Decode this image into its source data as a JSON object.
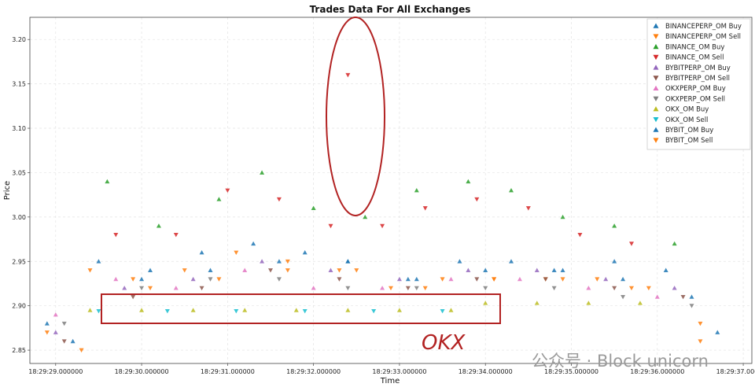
{
  "chart_data": {
    "type": "scatter",
    "title": "Trades Data For All Exchanges",
    "xlabel": "Time",
    "ylabel": "Price",
    "x_ticks": [
      "18:29:29.000000",
      "18:29:30.000000",
      "18:29:31.000000",
      "18:29:32.000000",
      "18:29:33.000000",
      "18:29:34.000000",
      "18:29:35.000000",
      "18:29:36.000000",
      "18:29:37.000000"
    ],
    "y_ticks": [
      "2.85",
      "2.90",
      "2.95",
      "3.00",
      "3.05",
      "3.10",
      "3.15",
      "3.20"
    ],
    "xlim": [
      "18:29:28.700",
      "18:29:37.100"
    ],
    "ylim": [
      2.835,
      3.225
    ],
    "grid": true,
    "legend_position": "top-right",
    "series": [
      {
        "name": "BINANCEPERP_OM Buy",
        "color": "#1f77b4",
        "marker": "triangle-up",
        "x": [
          "18:29:28.90",
          "18:29:29.50",
          "18:29:30.10",
          "18:29:30.70",
          "18:29:31.30",
          "18:29:31.90",
          "18:29:32.40",
          "18:29:33.10",
          "18:29:33.70",
          "18:29:34.30",
          "18:29:34.90",
          "18:29:35.50",
          "18:29:36.10",
          "18:29:36.70"
        ],
        "y": [
          2.88,
          2.95,
          2.94,
          2.96,
          2.97,
          2.96,
          2.95,
          2.93,
          2.95,
          2.95,
          2.94,
          2.95,
          2.94,
          2.87
        ]
      },
      {
        "name": "BINANCEPERP_OM Sell",
        "color": "#ff7f0e",
        "marker": "triangle-down",
        "x": [
          "18:29:28.90",
          "18:29:29.40",
          "18:29:29.90",
          "18:29:30.50",
          "18:29:31.10",
          "18:29:31.70",
          "18:29:32.30",
          "18:29:32.90",
          "18:29:33.50",
          "18:29:34.10",
          "18:29:34.70",
          "18:29:35.30",
          "18:29:35.90",
          "18:29:36.50"
        ],
        "y": [
          2.87,
          2.94,
          2.93,
          2.94,
          2.96,
          2.95,
          2.94,
          2.92,
          2.93,
          2.93,
          2.93,
          2.93,
          2.92,
          2.86
        ]
      },
      {
        "name": "BINANCE_OM Buy",
        "color": "#2ca02c",
        "marker": "triangle-up",
        "x": [
          "18:29:29.60",
          "18:29:30.20",
          "18:29:30.90",
          "18:29:31.40",
          "18:29:32.00",
          "18:29:32.60",
          "18:29:33.20",
          "18:29:33.80",
          "18:29:34.30",
          "18:29:34.90",
          "18:29:35.50",
          "18:29:36.20"
        ],
        "y": [
          3.04,
          2.99,
          3.02,
          3.05,
          3.01,
          3.0,
          3.03,
          3.04,
          3.03,
          3.0,
          2.99,
          2.97
        ]
      },
      {
        "name": "BINANCE_OM Sell",
        "color": "#d62728",
        "marker": "triangle-down",
        "x": [
          "18:29:29.70",
          "18:29:30.40",
          "18:29:31.00",
          "18:29:31.60",
          "18:29:32.20",
          "18:29:32.40",
          "18:29:32.80",
          "18:29:33.30",
          "18:29:33.90",
          "18:29:34.50",
          "18:29:35.10",
          "18:29:35.70"
        ],
        "y": [
          2.98,
          2.98,
          3.03,
          3.02,
          2.99,
          3.16,
          2.99,
          3.01,
          3.02,
          3.01,
          2.98,
          2.97
        ]
      },
      {
        "name": "BYBITPERP_OM Buy",
        "color": "#9467bd",
        "marker": "triangle-up",
        "x": [
          "18:29:29.00",
          "18:29:29.80",
          "18:29:30.60",
          "18:29:31.40",
          "18:29:32.20",
          "18:29:33.00",
          "18:29:33.80",
          "18:29:34.60",
          "18:29:35.40",
          "18:29:36.20"
        ],
        "y": [
          2.87,
          2.92,
          2.93,
          2.95,
          2.94,
          2.93,
          2.94,
          2.94,
          2.93,
          2.92
        ]
      },
      {
        "name": "BYBITPERP_OM Sell",
        "color": "#8c564b",
        "marker": "triangle-down",
        "x": [
          "18:29:29.10",
          "18:29:29.90",
          "18:29:30.70",
          "18:29:31.50",
          "18:29:32.30",
          "18:29:33.10",
          "18:29:33.90",
          "18:29:34.70",
          "18:29:35.50",
          "18:29:36.30"
        ],
        "y": [
          2.86,
          2.91,
          2.92,
          2.94,
          2.93,
          2.92,
          2.93,
          2.93,
          2.92,
          2.91
        ]
      },
      {
        "name": "OKXPERP_OM Buy",
        "color": "#e377c2",
        "marker": "triangle-up",
        "x": [
          "18:29:29.00",
          "18:29:29.70",
          "18:29:30.40",
          "18:29:31.20",
          "18:29:32.00",
          "18:29:32.80",
          "18:29:33.60",
          "18:29:34.40",
          "18:29:35.20",
          "18:29:36.00"
        ],
        "y": [
          2.89,
          2.93,
          2.92,
          2.94,
          2.92,
          2.92,
          2.93,
          2.93,
          2.92,
          2.91
        ]
      },
      {
        "name": "OKXPERP_OM Sell",
        "color": "#7f7f7f",
        "marker": "triangle-down",
        "x": [
          "18:29:29.10",
          "18:29:30.00",
          "18:29:30.80",
          "18:29:31.60",
          "18:29:32.40",
          "18:29:33.20",
          "18:29:34.00",
          "18:29:34.80",
          "18:29:35.60",
          "18:29:36.40"
        ],
        "y": [
          2.88,
          2.92,
          2.93,
          2.93,
          2.92,
          2.92,
          2.92,
          2.92,
          2.91,
          2.9
        ]
      },
      {
        "name": "OKX_OM Buy",
        "color": "#bcbd22",
        "marker": "triangle-up",
        "x": [
          "18:29:29.40",
          "18:29:30.00",
          "18:29:30.60",
          "18:29:31.20",
          "18:29:31.80",
          "18:29:32.40",
          "18:29:33.00",
          "18:29:33.60",
          "18:29:34.00",
          "18:29:34.60",
          "18:29:35.20",
          "18:29:35.80"
        ],
        "y": [
          2.895,
          2.895,
          2.895,
          2.895,
          2.895,
          2.895,
          2.895,
          2.895,
          2.903,
          2.903,
          2.903,
          2.903
        ]
      },
      {
        "name": "OKX_OM Sell",
        "color": "#17becf",
        "marker": "triangle-down",
        "x": [
          "18:29:29.50",
          "18:29:30.30",
          "18:29:31.10",
          "18:29:31.90",
          "18:29:32.70",
          "18:29:33.50"
        ],
        "y": [
          2.894,
          2.894,
          2.894,
          2.894,
          2.894,
          2.894
        ]
      },
      {
        "name": "BYBIT_OM Buy",
        "color": "#1f77b4",
        "marker": "triangle-up",
        "x": [
          "18:29:29.20",
          "18:29:30.00",
          "18:29:30.80",
          "18:29:31.60",
          "18:29:32.40",
          "18:29:33.20",
          "18:29:34.00",
          "18:29:34.80",
          "18:29:35.60",
          "18:29:36.40"
        ],
        "y": [
          2.86,
          2.93,
          2.94,
          2.95,
          2.95,
          2.93,
          2.94,
          2.94,
          2.93,
          2.91
        ]
      },
      {
        "name": "BYBIT_OM Sell",
        "color": "#ff7f0e",
        "marker": "triangle-down",
        "x": [
          "18:29:29.30",
          "18:29:30.10",
          "18:29:30.90",
          "18:29:31.70",
          "18:29:32.50",
          "18:29:33.30",
          "18:29:34.10",
          "18:29:34.90",
          "18:29:35.70",
          "18:29:36.50"
        ],
        "y": [
          2.85,
          2.92,
          2.93,
          2.94,
          2.94,
          2.92,
          2.93,
          2.93,
          2.92,
          2.88
        ]
      }
    ],
    "annotations": [
      {
        "type": "ellipse",
        "color": "#b22222",
        "x_range": [
          "18:29:32.05",
          "18:29:32.40"
        ],
        "y_range": [
          3.0,
          3.225
        ]
      },
      {
        "type": "rectangle",
        "color": "#b22222",
        "x_range": [
          "18:29:29.20",
          "18:29:33.85"
        ],
        "y_range": [
          2.876,
          2.91
        ]
      },
      {
        "type": "text",
        "text": "OKX",
        "color": "#b22222"
      }
    ]
  },
  "watermark": {
    "text": "公众号 · Block unicorn"
  }
}
